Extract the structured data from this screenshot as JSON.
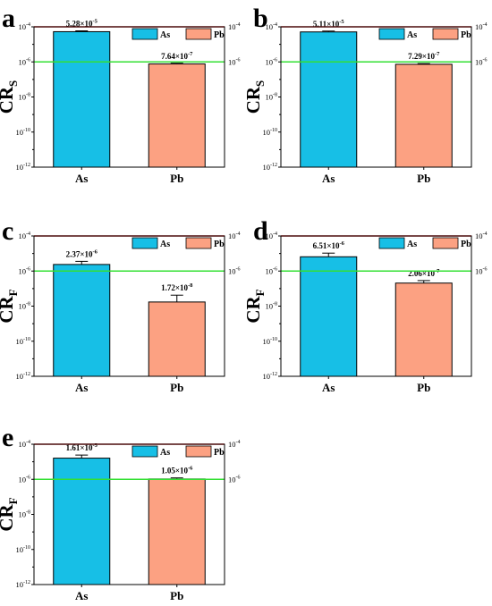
{
  "colors": {
    "As": "#17bfe6",
    "Pb": "#fca182",
    "threshold_high": "#e02020",
    "threshold_low": "#33e033"
  },
  "chart_data": [
    {
      "type": "bar",
      "panel": "a",
      "ylabel": "CR",
      "ylabel_sub": "S",
      "y_scale": "log",
      "ylim": [
        1e-12,
        0.0001
      ],
      "yticks": [
        "10^-4",
        "10^-6",
        "10^-8",
        "10^-10",
        "10^-12"
      ],
      "right_ticks": [
        "10^-4",
        "10^-6"
      ],
      "categories": [
        "As",
        "Pb"
      ],
      "values": [
        5.28e-05,
        7.64e-07
      ],
      "error": [
        6e-06,
        7e-08
      ],
      "data_labels": [
        {
          "mant": "5.28×10",
          "exp": "-5"
        },
        {
          "mant": "7.64×10",
          "exp": "-7"
        }
      ],
      "reference_lines": [
        0.0001,
        1e-06
      ],
      "legend": [
        "As",
        "Pb"
      ]
    },
    {
      "type": "bar",
      "panel": "b",
      "ylabel": "CR",
      "ylabel_sub": "S",
      "y_scale": "log",
      "ylim": [
        1e-12,
        0.0001
      ],
      "yticks": [
        "10^-4",
        "10^-6",
        "10^-8",
        "10^-10",
        "10^-12"
      ],
      "right_ticks": [
        "10^-4",
        "10^-6"
      ],
      "categories": [
        "As",
        "Pb"
      ],
      "values": [
        5.11e-05,
        7.29e-07
      ],
      "error": [
        6e-06,
        7e-08
      ],
      "data_labels": [
        {
          "mant": "5.11×10",
          "exp": "-5"
        },
        {
          "mant": "7.29×10",
          "exp": "-7"
        }
      ],
      "reference_lines": [
        0.0001,
        1e-06
      ],
      "legend": [
        "As",
        "Pb"
      ]
    },
    {
      "type": "bar",
      "panel": "c",
      "ylabel": "CR",
      "ylabel_sub": "F",
      "y_scale": "log",
      "ylim": [
        1e-12,
        0.0001
      ],
      "yticks": [
        "10^-4",
        "10^-6",
        "10^-8",
        "10^-10",
        "10^-12"
      ],
      "right_ticks": [
        "10^-4",
        "10^-6"
      ],
      "categories": [
        "As",
        "Pb"
      ],
      "values": [
        2.37e-06,
        1.72e-08
      ],
      "error": [
        1.2e-06,
        2.5e-08
      ],
      "data_labels": [
        {
          "mant": "2.37×10",
          "exp": "-6"
        },
        {
          "mant": "1.72×10",
          "exp": "-8"
        }
      ],
      "reference_lines": [
        0.0001,
        1e-06
      ],
      "legend": [
        "As",
        "Pb"
      ]
    },
    {
      "type": "bar",
      "panel": "d",
      "ylabel": "CR",
      "ylabel_sub": "F",
      "y_scale": "log",
      "ylim": [
        1e-12,
        0.0001
      ],
      "yticks": [
        "10^-4",
        "10^-6",
        "10^-8",
        "10^-10",
        "10^-12"
      ],
      "right_ticks": [
        "10^-4",
        "10^-6"
      ],
      "categories": [
        "As",
        "Pb"
      ],
      "values": [
        6.51e-06,
        2.06e-07
      ],
      "error": [
        4e-06,
        8e-08
      ],
      "data_labels": [
        {
          "mant": "6.51×10",
          "exp": "-6"
        },
        {
          "mant": "2.06×10",
          "exp": "-7"
        }
      ],
      "reference_lines": [
        0.0001,
        1e-06
      ],
      "legend": [
        "As",
        "Pb"
      ]
    },
    {
      "type": "bar",
      "panel": "e",
      "ylabel": "CR",
      "ylabel_sub": "F",
      "y_scale": "log",
      "ylim": [
        1e-12,
        0.0001
      ],
      "yticks": [
        "10^-4",
        "10^-6",
        "10^-8",
        "10^-10",
        "10^-12"
      ],
      "right_ticks": [
        "10^-4",
        "10^-6"
      ],
      "categories": [
        "As",
        "Pb"
      ],
      "values": [
        1.61e-05,
        1.05e-06
      ],
      "error": [
        8e-06,
        1.5e-07
      ],
      "data_labels": [
        {
          "mant": "1.61×10",
          "exp": "-5"
        },
        {
          "mant": "1.05×10",
          "exp": "-6"
        }
      ],
      "reference_lines": [
        0.0001,
        1e-06
      ],
      "legend": [
        "As",
        "Pb"
      ]
    }
  ]
}
